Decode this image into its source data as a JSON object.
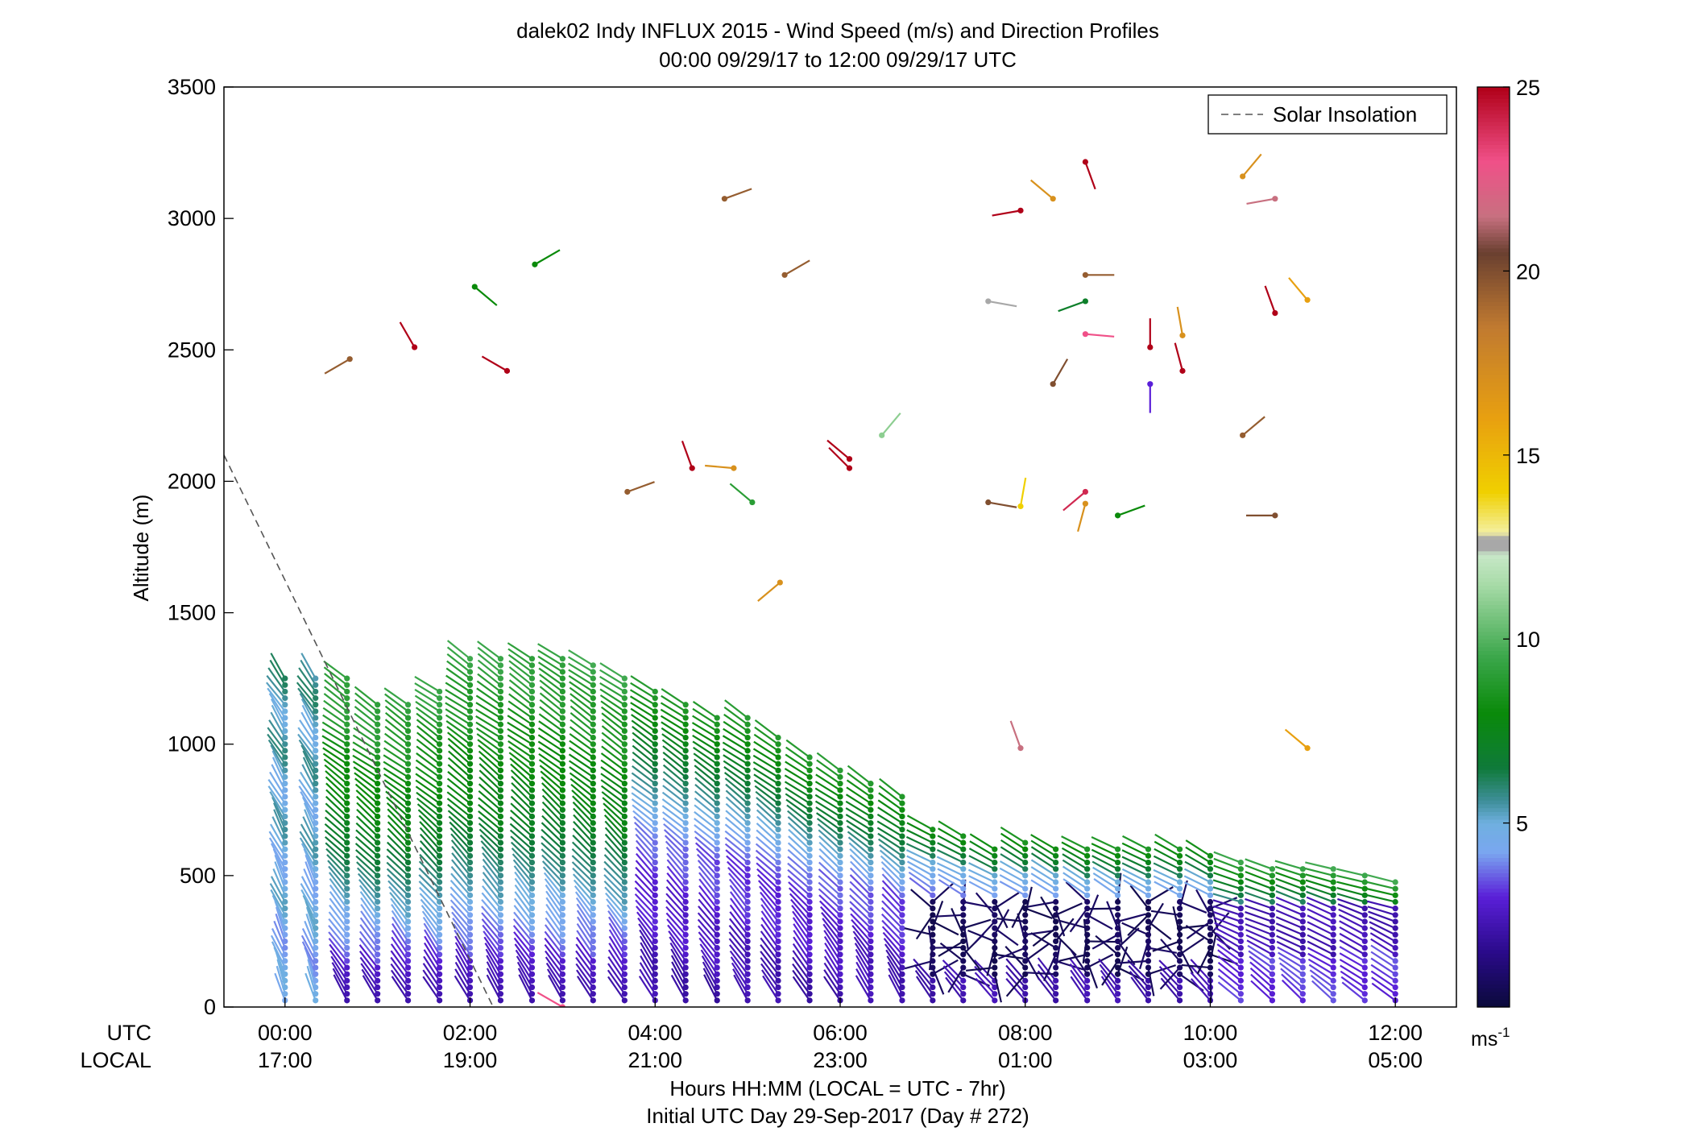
{
  "chart_data": {
    "type": "wind-barb-profile",
    "title": "dalek02 Indy INFLUX 2015 - Wind Speed (m/s) and Direction Profiles",
    "subtitle": "00:00 09/29/17 to 12:00 09/29/17  UTC",
    "ylabel": "Altitude (m)",
    "xlabel": "Hours HH:MM  (LOCAL = UTC - 7hr)",
    "xlabel2": "Initial UTC Day 29-Sep-2017 (Day # 272)",
    "x_row_label_utc": "UTC",
    "x_row_label_local": "LOCAL",
    "xlim_hours": [
      -0.66,
      12.66
    ],
    "ylim": [
      0,
      3500
    ],
    "y_ticks": [
      0,
      500,
      1000,
      1500,
      2000,
      2500,
      3000,
      3500
    ],
    "x_ticks_hours": [
      0,
      2,
      4,
      6,
      8,
      10,
      12
    ],
    "x_ticks_utc": [
      "00:00",
      "02:00",
      "04:00",
      "06:00",
      "08:00",
      "10:00",
      "12:00"
    ],
    "x_ticks_local": [
      "17:00",
      "19:00",
      "21:00",
      "23:00",
      "01:00",
      "03:00",
      "05:00"
    ],
    "legend": {
      "entry": "Solar Insolation",
      "style": "dashed",
      "position": "top-right"
    },
    "solar_insolation_line": [
      [
        -0.66,
        2100
      ],
      [
        2.25,
        0
      ]
    ],
    "colorbar": {
      "min": 0,
      "max": 25,
      "ticks": [
        5,
        10,
        15,
        20,
        25
      ],
      "unit_label": "ms",
      "unit_exponent": "-1",
      "stops": [
        {
          "v": 0,
          "c": "#0a0a3a"
        },
        {
          "v": 1.5,
          "c": "#2a0a8a"
        },
        {
          "v": 3,
          "c": "#5a1fd8"
        },
        {
          "v": 4.2,
          "c": "#7aa6f0"
        },
        {
          "v": 5,
          "c": "#6fb0e0"
        },
        {
          "v": 5.6,
          "c": "#3f8f9a"
        },
        {
          "v": 6.5,
          "c": "#0f7a3a"
        },
        {
          "v": 8,
          "c": "#0a8a0a"
        },
        {
          "v": 9.5,
          "c": "#3aa64a"
        },
        {
          "v": 11.5,
          "c": "#a8dba8"
        },
        {
          "v": 12.3,
          "c": "#c8e8c8"
        },
        {
          "v": 12.45,
          "c": "#a8a8a8"
        },
        {
          "v": 12.75,
          "c": "#a8a8a8"
        },
        {
          "v": 12.9,
          "c": "#f4f0a0"
        },
        {
          "v": 14,
          "c": "#f0d000"
        },
        {
          "v": 16,
          "c": "#e8a010"
        },
        {
          "v": 18.5,
          "c": "#c07a30"
        },
        {
          "v": 20.5,
          "c": "#6a4030"
        },
        {
          "v": 21.5,
          "c": "#c87080"
        },
        {
          "v": 23,
          "c": "#f05088"
        },
        {
          "v": 25,
          "c": "#b00018"
        }
      ]
    },
    "profile_times_hours": [
      0,
      0.33,
      0.67,
      1.0,
      1.33,
      1.67,
      2.0,
      2.33,
      2.67,
      3.0,
      3.33,
      3.67,
      4.0,
      4.33,
      4.67,
      5.0,
      5.33,
      5.67,
      6.0,
      6.33,
      6.67,
      7.0,
      7.33,
      7.67,
      8.0,
      8.33,
      8.67,
      9.0,
      9.33,
      9.67,
      10.0,
      10.33,
      10.67,
      11.0,
      11.33,
      11.67,
      12.0
    ],
    "profile_tops_m": [
      1250,
      1250,
      1250,
      1170,
      1170,
      1220,
      1340,
      1340,
      1340,
      1340,
      1300,
      1270,
      1210,
      1170,
      1120,
      1100,
      1040,
      960,
      900,
      860,
      820,
      690,
      660,
      620,
      630,
      620,
      600,
      600,
      600,
      600,
      590,
      560,
      540,
      540,
      530,
      510,
      480
    ],
    "profile_spacing_m": 25,
    "barb_length_m": 110,
    "scattered_barbs": [
      {
        "t": 0.7,
        "z": 2465,
        "dir": 240,
        "spd": 19.5
      },
      {
        "t": 1.4,
        "z": 2510,
        "dir": 330,
        "spd": 25
      },
      {
        "t": 2.05,
        "z": 2740,
        "dir": 130,
        "spd": 8
      },
      {
        "t": 2.4,
        "z": 2420,
        "dir": 300,
        "spd": 25
      },
      {
        "t": 2.7,
        "z": 2825,
        "dir": 60,
        "spd": 8
      },
      {
        "t": 3.7,
        "z": 1960,
        "dir": 70,
        "spd": 19.5
      },
      {
        "t": 4.4,
        "z": 2050,
        "dir": 340,
        "spd": 25
      },
      {
        "t": 4.75,
        "z": 3075,
        "dir": 70,
        "spd": 19.5
      },
      {
        "t": 4.85,
        "z": 2050,
        "dir": 275,
        "spd": 17
      },
      {
        "t": 5.05,
        "z": 1920,
        "dir": 310,
        "spd": 9
      },
      {
        "t": 5.35,
        "z": 1615,
        "dir": 230,
        "spd": 17
      },
      {
        "t": 5.4,
        "z": 2785,
        "dir": 60,
        "spd": 19.5
      },
      {
        "t": 6.1,
        "z": 2085,
        "dir": 310,
        "spd": 25
      },
      {
        "t": 6.1,
        "z": 2050,
        "dir": 315,
        "spd": 25
      },
      {
        "t": 6.45,
        "z": 2175,
        "dir": 40,
        "spd": 11
      },
      {
        "t": 7.6,
        "z": 2685,
        "dir": 100,
        "spd": 12.5
      },
      {
        "t": 7.6,
        "z": 1920,
        "dir": 100,
        "spd": 20
      },
      {
        "t": 7.95,
        "z": 1905,
        "dir": 10,
        "spd": 14
      },
      {
        "t": 7.95,
        "z": 3030,
        "dir": 260,
        "spd": 25
      },
      {
        "t": 7.95,
        "z": 985,
        "dir": 340,
        "spd": 21.5
      },
      {
        "t": 8.3,
        "z": 3075,
        "dir": 310,
        "spd": 17
      },
      {
        "t": 8.3,
        "z": 2370,
        "dir": 30,
        "spd": 20
      },
      {
        "t": 8.65,
        "z": 2685,
        "dir": 250,
        "spd": 7
      },
      {
        "t": 8.65,
        "z": 2560,
        "dir": 95,
        "spd": 23
      },
      {
        "t": 8.65,
        "z": 3215,
        "dir": 160,
        "spd": 25
      },
      {
        "t": 8.65,
        "z": 2785,
        "dir": 90,
        "spd": 19.5
      },
      {
        "t": 8.65,
        "z": 1960,
        "dir": 230,
        "spd": 24
      },
      {
        "t": 8.65,
        "z": 1915,
        "dir": 195,
        "spd": 17
      },
      {
        "t": 9.0,
        "z": 1870,
        "dir": 70,
        "spd": 8
      },
      {
        "t": 9.35,
        "z": 2510,
        "dir": 0,
        "spd": 25
      },
      {
        "t": 9.35,
        "z": 2370,
        "dir": 180,
        "spd": 3
      },
      {
        "t": 9.7,
        "z": 2555,
        "dir": 350,
        "spd": 17
      },
      {
        "t": 9.7,
        "z": 2420,
        "dir": 345,
        "spd": 25
      },
      {
        "t": 10.35,
        "z": 3160,
        "dir": 40,
        "spd": 17
      },
      {
        "t": 10.35,
        "z": 2175,
        "dir": 50,
        "spd": 19.5
      },
      {
        "t": 10.7,
        "z": 1870,
        "dir": 270,
        "spd": 20
      },
      {
        "t": 10.7,
        "z": 3075,
        "dir": 260,
        "spd": 21.5
      },
      {
        "t": 10.7,
        "z": 2640,
        "dir": 340,
        "spd": 25
      },
      {
        "t": 11.05,
        "z": 2690,
        "dir": 320,
        "spd": 16
      },
      {
        "t": 11.05,
        "z": 985,
        "dir": 310,
        "spd": 16
      },
      {
        "t": 3.0,
        "z": 0,
        "dir": 300,
        "spd": 23
      }
    ]
  }
}
